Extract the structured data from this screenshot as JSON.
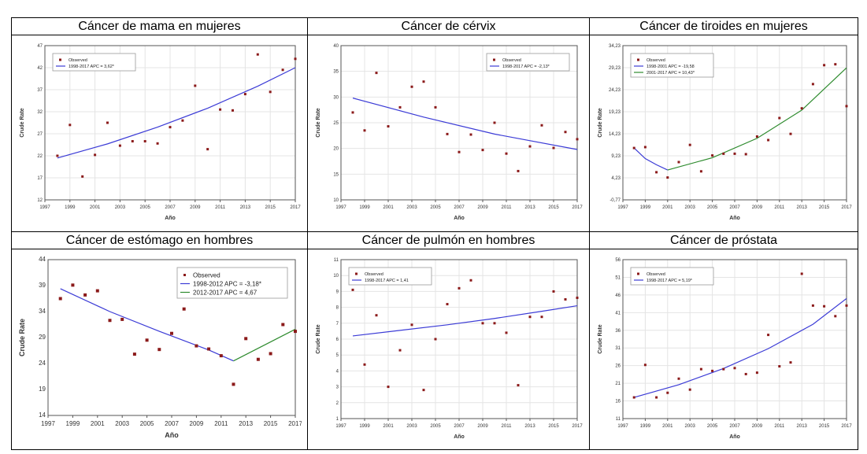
{
  "colors": {
    "points": "#8b1a1a",
    "line_blue": "#3b3bd6",
    "line_green": "#2e8b2e",
    "axis": "#555555",
    "grid": "#e4e4e4"
  },
  "chart_data": [
    {
      "type": "scatter",
      "title": "Cáncer de mama en mujeres",
      "xlabel": "Año",
      "ylabel": "Crude Rate",
      "xlim": [
        1997,
        2017
      ],
      "ylim": [
        12,
        47
      ],
      "xticks": [
        1997,
        1999,
        2001,
        2003,
        2005,
        2007,
        2009,
        2011,
        2013,
        2015,
        2017
      ],
      "yticks": [
        12,
        17,
        22,
        27,
        32,
        37,
        42,
        47
      ],
      "grid": true,
      "legend_position": "top-left",
      "observed_label": "Observed",
      "x": [
        1998,
        1999,
        2000,
        2001,
        2002,
        2003,
        2004,
        2005,
        2006,
        2007,
        2008,
        2009,
        2010,
        2011,
        2012,
        2013,
        2014,
        2015,
        2016,
        2017
      ],
      "observed": [
        22.0,
        29.0,
        17.3,
        22.2,
        29.5,
        24.3,
        25.3,
        25.3,
        24.8,
        28.5,
        30.0,
        37.9,
        23.5,
        32.5,
        32.3,
        36.0,
        45.0,
        36.5,
        41.5,
        44.0
      ],
      "segments": [
        {
          "name": "1998-2017 APC = 3,62*",
          "color": "line_blue",
          "x": [
            1998,
            2002,
            2006,
            2010,
            2014,
            2017
          ],
          "y": [
            21.5,
            24.7,
            28.5,
            32.8,
            37.8,
            42.0
          ]
        }
      ]
    },
    {
      "type": "scatter",
      "title": "Cáncer de cérvix",
      "xlabel": "Año",
      "ylabel": "Crude Rate",
      "xlim": [
        1997,
        2017
      ],
      "ylim": [
        10,
        40
      ],
      "xticks": [
        1997,
        1999,
        2001,
        2003,
        2005,
        2007,
        2009,
        2011,
        2013,
        2015,
        2017
      ],
      "yticks": [
        10,
        15,
        20,
        25,
        30,
        35,
        40
      ],
      "grid": true,
      "legend_position": "top-right",
      "observed_label": "Observed",
      "x": [
        1998,
        1999,
        2000,
        2001,
        2002,
        2003,
        2004,
        2005,
        2006,
        2007,
        2008,
        2009,
        2010,
        2011,
        2012,
        2013,
        2014,
        2015,
        2016,
        2017
      ],
      "observed": [
        27.0,
        23.5,
        34.7,
        24.3,
        28.0,
        32.0,
        33.0,
        28.0,
        22.8,
        19.3,
        22.7,
        19.7,
        25.0,
        19.0,
        15.6,
        20.4,
        24.5,
        20.1,
        23.2,
        21.8
      ],
      "segments": [
        {
          "name": "1998-2017 APC = -2,13*",
          "color": "line_blue",
          "x": [
            1998,
            2004,
            2010,
            2017
          ],
          "y": [
            29.8,
            26.1,
            22.8,
            19.8
          ]
        }
      ]
    },
    {
      "type": "scatter",
      "title": "Cáncer de tiroides en mujeres",
      "xlabel": "Año",
      "ylabel": "Crude Rate",
      "xlim": [
        1997,
        2017
      ],
      "ylim": [
        -0.77,
        34.23
      ],
      "xticks": [
        1997,
        1999,
        2001,
        2003,
        2005,
        2007,
        2009,
        2011,
        2013,
        2015,
        2017
      ],
      "yticks": [
        -0.77,
        4.23,
        9.23,
        14.23,
        19.23,
        24.23,
        29.23,
        34.23
      ],
      "ytick_labels": [
        "-0,77",
        "4,23",
        "9,23",
        "14,23",
        "19,23",
        "24,23",
        "29,23",
        "34,23"
      ],
      "grid": true,
      "legend_position": "top-left",
      "observed_label": "Observed",
      "x": [
        1998,
        1999,
        2000,
        2001,
        2002,
        2003,
        2004,
        2005,
        2006,
        2007,
        2008,
        2009,
        2010,
        2011,
        2012,
        2013,
        2014,
        2015,
        2016,
        2017
      ],
      "observed": [
        11.0,
        11.2,
        5.5,
        4.3,
        7.8,
        11.7,
        5.7,
        9.3,
        9.7,
        9.7,
        9.6,
        13.6,
        12.8,
        17.8,
        14.2,
        20.0,
        25.5,
        29.8,
        30.0,
        20.5
      ],
      "segments": [
        {
          "name": "1998-2001 APC = -19,58",
          "color": "line_blue",
          "x": [
            1998,
            1999,
            2000,
            2001
          ],
          "y": [
            11.0,
            8.6,
            7.2,
            6.0
          ]
        },
        {
          "name": "2001-2017 APC = 10,43*",
          "color": "line_green",
          "x": [
            2001,
            2005,
            2009,
            2013,
            2017
          ],
          "y": [
            6.0,
            8.8,
            13.2,
            19.6,
            29.2
          ]
        }
      ]
    },
    {
      "type": "scatter",
      "title": "Cáncer de estómago en hombres",
      "xlabel": "Año",
      "ylabel": "Crude Rate",
      "xlim": [
        1997,
        2017
      ],
      "ylim": [
        14,
        44
      ],
      "xticks": [
        1997,
        1999,
        2001,
        2003,
        2005,
        2007,
        2009,
        2011,
        2013,
        2015,
        2017
      ],
      "yticks": [
        14,
        19,
        24,
        29,
        34,
        39,
        44
      ],
      "grid": false,
      "legend_position": "top-right",
      "observed_label": "Observed",
      "x": [
        1998,
        1999,
        2000,
        2001,
        2002,
        2003,
        2004,
        2005,
        2006,
        2007,
        2008,
        2009,
        2010,
        2011,
        2012,
        2013,
        2014,
        2015,
        2016,
        2017
      ],
      "observed": [
        36.5,
        39.1,
        37.2,
        38.0,
        32.3,
        32.5,
        25.8,
        28.5,
        26.7,
        29.8,
        34.5,
        27.4,
        26.8,
        25.5,
        20.0,
        28.8,
        24.8,
        25.9,
        31.5,
        30.2
      ],
      "segments": [
        {
          "name": "1998-2012 APC = -3,18*",
          "color": "line_blue",
          "x": [
            1998,
            2002,
            2006,
            2010,
            2012
          ],
          "y": [
            38.4,
            34.0,
            30.2,
            26.6,
            24.5
          ]
        },
        {
          "name": "2012-2017 APC = 4,67",
          "color": "line_green",
          "x": [
            2012,
            2017
          ],
          "y": [
            24.5,
            30.6
          ]
        }
      ]
    },
    {
      "type": "scatter",
      "title": "Cáncer de pulmón en hombres",
      "xlabel": "Año",
      "ylabel": "Crude Rate",
      "xlim": [
        1997,
        2017
      ],
      "ylim": [
        1,
        11
      ],
      "xticks": [
        1997,
        1999,
        2001,
        2003,
        2005,
        2007,
        2009,
        2011,
        2013,
        2015,
        2017
      ],
      "yticks": [
        1,
        2,
        3,
        4,
        5,
        6,
        7,
        8,
        9,
        10,
        11
      ],
      "grid": true,
      "legend_position": "top-left",
      "observed_label": "Observed",
      "x": [
        1998,
        1999,
        2000,
        2001,
        2002,
        2003,
        2004,
        2005,
        2006,
        2007,
        2008,
        2009,
        2010,
        2011,
        2012,
        2013,
        2014,
        2015,
        2016,
        2017
      ],
      "observed": [
        9.1,
        4.4,
        7.5,
        3.0,
        5.3,
        6.9,
        2.8,
        6.0,
        8.2,
        9.2,
        9.7,
        7.0,
        7.0,
        6.4,
        3.1,
        7.4,
        7.4,
        9.0,
        8.5,
        8.6
      ],
      "segments": [
        {
          "name": "1998-2017 APC = 1,41",
          "color": "line_blue",
          "x": [
            1998,
            2002,
            2006,
            2010,
            2014,
            2017
          ],
          "y": [
            6.2,
            6.55,
            6.9,
            7.3,
            7.75,
            8.1
          ]
        }
      ]
    },
    {
      "type": "scatter",
      "title": "Cáncer de próstata",
      "xlabel": "Año",
      "ylabel": "Crude Rate",
      "xlim": [
        1997,
        2017
      ],
      "ylim": [
        11,
        56
      ],
      "xticks": [
        1997,
        1999,
        2001,
        2003,
        2005,
        2007,
        2009,
        2011,
        2013,
        2015,
        2017
      ],
      "yticks": [
        11,
        16,
        21,
        26,
        31,
        36,
        41,
        46,
        51,
        56
      ],
      "grid": true,
      "legend_position": "top-left",
      "observed_label": "Observed",
      "x": [
        1998,
        1999,
        2000,
        2001,
        2002,
        2003,
        2004,
        2005,
        2006,
        2007,
        2008,
        2009,
        2010,
        2011,
        2012,
        2013,
        2014,
        2015,
        2016,
        2017
      ],
      "observed": [
        17.0,
        26.2,
        17.0,
        18.3,
        22.3,
        19.2,
        25.0,
        24.5,
        25.0,
        25.3,
        23.6,
        24.0,
        34.7,
        25.8,
        26.9,
        52.0,
        43.0,
        42.8,
        40.0,
        43.0
      ],
      "segments": [
        {
          "name": "1998-2017 APC = 5,19*",
          "color": "line_blue",
          "x": [
            1998,
            2002,
            2006,
            2010,
            2014,
            2017
          ],
          "y": [
            17.0,
            20.6,
            25.2,
            30.8,
            37.7,
            45.0
          ]
        }
      ]
    }
  ]
}
